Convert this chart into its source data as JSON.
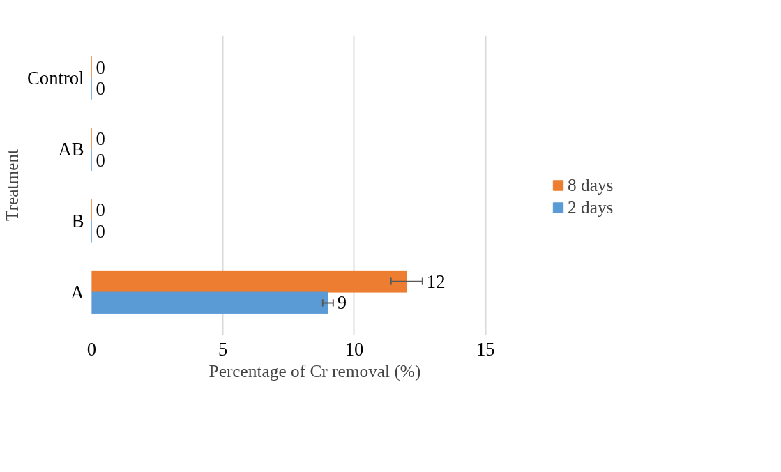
{
  "chart_data": {
    "type": "bar",
    "orientation": "horizontal",
    "categories": [
      "Control",
      "AB",
      "B",
      "A"
    ],
    "series": [
      {
        "name": "8 days",
        "color": "#ed7d31",
        "values": [
          0,
          0,
          0,
          12
        ],
        "errors": [
          null,
          null,
          null,
          0.6
        ]
      },
      {
        "name": "2 days",
        "color": "#5b9bd5",
        "values": [
          0,
          0,
          0,
          9
        ],
        "errors": [
          null,
          null,
          null,
          0.2
        ]
      }
    ],
    "xlabel": "Percentage of Cr removal (%)",
    "ylabel": "Treatment",
    "xlim": [
      0,
      17
    ],
    "xticks": [
      0,
      5,
      10,
      15
    ],
    "grid": "x",
    "legend": "right",
    "data_labels": true
  }
}
